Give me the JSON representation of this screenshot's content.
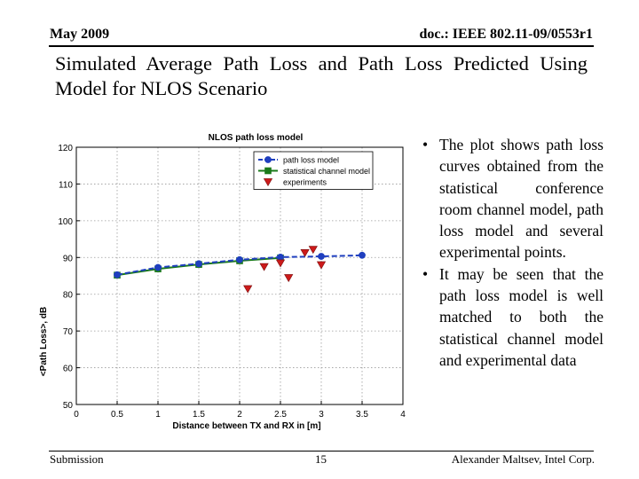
{
  "header": {
    "date": "May 2009",
    "doc": "doc.: IEEE 802.11-09/0553r1"
  },
  "title": "Simulated Average Path Loss and Path Loss Predicted Using Model for NLOS Scenario",
  "bullets": [
    "The plot shows path loss curves obtained from the statistical conference room channel model, path loss model and several experimental points.",
    "It may be seen that the path loss model is well matched to both the statistical channel model and experimental data"
  ],
  "footer": {
    "left": "Submission",
    "page": "15",
    "right": "Alexander Maltsev, Intel Corp."
  },
  "colors": {
    "model": "#1f3fbf",
    "channel": "#1a7a1a",
    "experiments": "#cc1a1a"
  },
  "chart_data": {
    "type": "line",
    "title": "NLOS path loss model",
    "xlabel": "Distance between TX and RX in [m]",
    "ylabel": "<Path Loss>, dB",
    "xlim": [
      0,
      4
    ],
    "ylim": [
      50,
      120
    ],
    "xticks": [
      0,
      0.5,
      1,
      1.5,
      2,
      2.5,
      3,
      3.5,
      4
    ],
    "xtick_labels": [
      "0",
      "0.5",
      "1",
      "1.5",
      "2",
      "2.5",
      "3",
      "3.5",
      "4"
    ],
    "yticks": [
      50,
      60,
      70,
      80,
      90,
      100,
      110,
      120
    ],
    "grid": true,
    "legend_position": "top-right",
    "series": [
      {
        "name": "path loss model",
        "style": "line-marker",
        "marker": "circle",
        "color": "#1f3fbf",
        "x": [
          0.5,
          1,
          1.5,
          2,
          2.5,
          3,
          3.5
        ],
        "y": [
          85.3,
          87.3,
          88.3,
          89.4,
          90.1,
          90.3,
          90.6
        ]
      },
      {
        "name": "statistical channel model",
        "style": "line-marker",
        "marker": "square",
        "color": "#1a7a1a",
        "x": [
          0.5,
          1,
          1.5,
          2,
          2.5
        ],
        "y": [
          85.2,
          86.9,
          88.1,
          89.1,
          89.9
        ]
      },
      {
        "name": "experiments",
        "style": "marker",
        "marker": "triangle-down",
        "color": "#cc1a1a",
        "x": [
          2.1,
          2.3,
          2.5,
          2.6,
          2.8,
          2.9,
          3.0
        ],
        "y": [
          81.5,
          87.5,
          88.5,
          84.5,
          91.3,
          92.2,
          88.0
        ]
      }
    ]
  }
}
